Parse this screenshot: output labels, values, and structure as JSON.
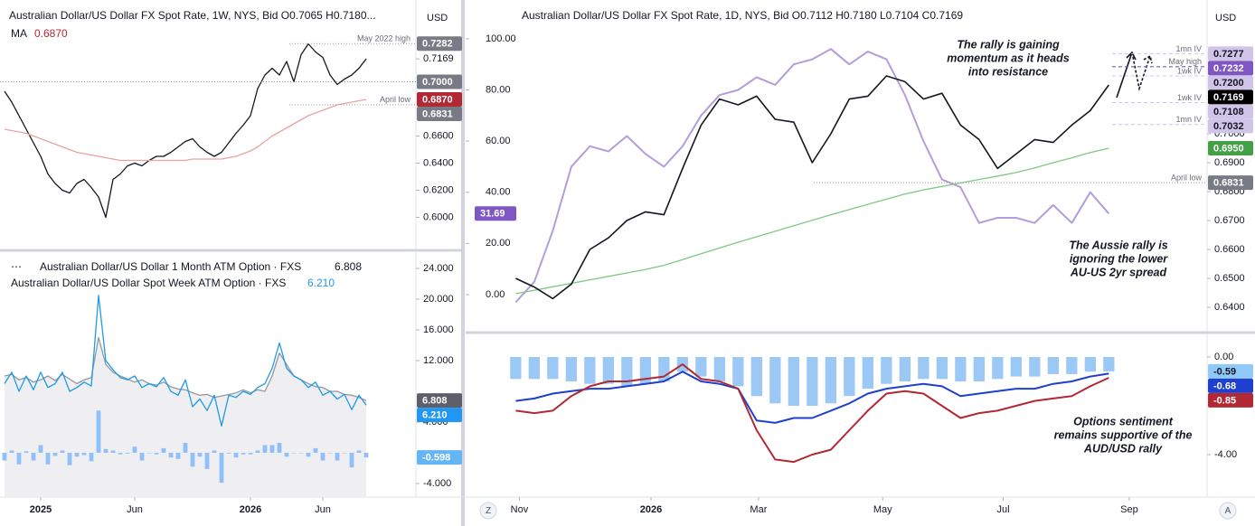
{
  "chart_data": [
    {
      "type": "line",
      "title": "Australian Dollar/US Dollar FX Spot Rate, 1W, NYS, Bid O0.7065 H0.7180...",
      "currency": "USD",
      "xlim": [
        -0.625,
        56.875
      ],
      "ylim": [
        0.577,
        0.757
      ],
      "yticks": [
        {
          "value": 0.6,
          "label": "0.6000"
        },
        {
          "value": 0.62,
          "label": "0.6200"
        },
        {
          "value": 0.64,
          "label": "0.6400"
        },
        {
          "value": 0.66,
          "label": "0.6600"
        }
      ],
      "x": [
        0,
        1,
        2,
        3,
        4,
        5,
        6,
        7,
        8,
        9,
        10,
        11,
        12,
        13,
        14,
        15,
        16,
        17,
        18,
        19,
        20,
        21,
        22,
        23,
        24,
        25,
        26,
        27,
        28,
        29,
        30,
        31,
        32,
        33,
        34,
        35,
        36,
        37,
        38,
        39,
        40,
        41,
        42,
        43,
        44,
        45,
        46,
        47,
        48,
        49,
        50
      ],
      "series": [
        {
          "color": "#131722",
          "values": [
            0.693,
            0.685,
            0.675,
            0.665,
            0.655,
            0.645,
            0.632,
            0.625,
            0.62,
            0.618,
            0.625,
            0.628,
            0.622,
            0.615,
            0.6,
            0.628,
            0.632,
            0.638,
            0.64,
            0.638,
            0.642,
            0.645,
            0.645,
            0.648,
            0.652,
            0.656,
            0.658,
            0.652,
            0.648,
            0.645,
            0.648,
            0.655,
            0.662,
            0.668,
            0.675,
            0.695,
            0.705,
            0.71,
            0.705,
            0.715,
            0.7,
            0.72,
            0.728,
            0.722,
            0.718,
            0.705,
            0.698,
            0.702,
            0.705,
            0.71,
            0.7169
          ]
        },
        {
          "name": "MA",
          "color": "#e8a3a3",
          "values": [
            0.665,
            0.664,
            0.663,
            0.662,
            0.66,
            0.658,
            0.656,
            0.654,
            0.652,
            0.65,
            0.648,
            0.647,
            0.646,
            0.645,
            0.644,
            0.643,
            0.642,
            0.642,
            0.642,
            0.642,
            0.642,
            0.642,
            0.642,
            0.642,
            0.642,
            0.642,
            0.643,
            0.643,
            0.643,
            0.643,
            0.643,
            0.644,
            0.645,
            0.647,
            0.649,
            0.652,
            0.656,
            0.66,
            0.663,
            0.666,
            0.669,
            0.672,
            0.675,
            0.677,
            0.679,
            0.681,
            0.683,
            0.684,
            0.685,
            0.686,
            0.687
          ]
        }
      ],
      "price_labels": [
        {
          "value": 0.7282,
          "label": "0.7282",
          "color": "#787b86",
          "annotation": "May 2022 high",
          "line": true
        },
        {
          "value": 0.7169,
          "label": "0.7169"
        },
        {
          "value": 0.7,
          "label": "0.7000",
          "color": "#787b86",
          "line": true
        },
        {
          "value": 0.687,
          "label": "0.6870",
          "color": "#b22833"
        },
        {
          "value": 0.6831,
          "label": "0.6831",
          "color": "#787b86",
          "annotation": "April low",
          "line": true
        }
      ]
    },
    {
      "type": "line",
      "xlim": [
        -0.625,
        56.875
      ],
      "ylim": [
        -5.76,
        26
      ],
      "yticks": [
        {
          "value": 24,
          "label": "24.000"
        },
        {
          "value": 20,
          "label": "20.000"
        },
        {
          "value": 16,
          "label": "16.000"
        },
        {
          "value": 12,
          "label": "12.000"
        },
        {
          "value": 4,
          "label": "4.000"
        },
        {
          "value": -4,
          "label": "-4.000"
        }
      ],
      "xticks": [
        {
          "value": 5,
          "label": "2025"
        },
        {
          "value": 18,
          "label": "Jun"
        },
        {
          "value": 34,
          "label": "2026"
        },
        {
          "value": 44,
          "label": "Jun"
        }
      ],
      "x": [
        0,
        1,
        2,
        3,
        4,
        5,
        6,
        7,
        8,
        9,
        10,
        11,
        12,
        13,
        14,
        15,
        16,
        17,
        18,
        19,
        20,
        21,
        22,
        23,
        24,
        25,
        26,
        27,
        28,
        29,
        30,
        31,
        32,
        33,
        34,
        35,
        36,
        37,
        38,
        39,
        40,
        41,
        42,
        43,
        44,
        45,
        46,
        47,
        48,
        49,
        50
      ],
      "series": [
        {
          "name": "Australian Dollar/US Dollar 1 Month ATM Option · FXS",
          "color": "#9598a1",
          "fill": "#efeff2",
          "values": [
            10,
            10.2,
            9.5,
            9.8,
            9.2,
            9.5,
            10,
            9.4,
            10.2,
            9.6,
            9,
            9.5,
            9.8,
            15,
            11.5,
            10.5,
            10,
            9.6,
            9.2,
            9.5,
            9,
            8.8,
            9.2,
            8.6,
            8.3,
            8.2,
            7.8,
            7.5,
            7.6,
            7.2,
            7.4,
            7.6,
            7.8,
            8.2,
            7.8,
            8.2,
            8,
            10,
            13,
            11.5,
            10,
            9.5,
            9,
            8.6,
            8.5,
            8,
            8,
            7.6,
            7.5,
            7.2,
            6.808
          ]
        },
        {
          "name": "Australian Dollar/US Dollar Spot Week ATM Option · FXS",
          "color": "#1e9be8",
          "values": [
            9,
            10.5,
            8,
            10,
            8.2,
            10.5,
            8.5,
            9,
            10.5,
            8,
            8.5,
            9.2,
            8.7,
            20.5,
            12,
            10.8,
            9.8,
            9.5,
            10,
            8.5,
            9,
            8.6,
            9.8,
            8,
            7.5,
            9.5,
            6,
            7,
            5.5,
            7.5,
            3.5,
            7.5,
            7.2,
            8,
            7.6,
            8.5,
            9,
            11,
            14.3,
            11,
            10,
            9.5,
            8.5,
            9.2,
            7.5,
            8,
            7,
            7.6,
            5.6,
            7.5,
            6.21
          ]
        },
        {
          "style": "bar",
          "color": "#90bff9",
          "values": [
            -1,
            0.3,
            -1.5,
            0.2,
            -1,
            1,
            -1.5,
            -0.4,
            0.3,
            -1.6,
            -0.5,
            -0.3,
            -1.1,
            5.5,
            0.5,
            0.3,
            -0.2,
            -0.1,
            0.8,
            -1,
            0,
            -0.2,
            0.6,
            -0.6,
            -0.8,
            1.3,
            -1.8,
            -0.5,
            -2.1,
            0.3,
            -3.9,
            -0.1,
            -0.6,
            -0.2,
            -0.2,
            0.3,
            1,
            1,
            1.3,
            -0.5,
            0,
            0,
            -0.5,
            0.6,
            -1,
            0,
            -1,
            0,
            -1.9,
            0.3,
            -0.598
          ]
        }
      ],
      "price_labels": [
        {
          "value": 6.808,
          "label": "6.808",
          "color": "#5d606b"
        },
        {
          "value": 6.21,
          "label": "6.210",
          "color": "#2196f3"
        },
        {
          "value": -0.598,
          "label": "-0.598",
          "color": "#64b5f6"
        }
      ]
    },
    {
      "type": "line",
      "title": "Australian Dollar/US Dollar FX Spot Rate, 1D, NYS, Bid O0.7112 H0.7180 L0.7104 C0.7169",
      "currency": "USD",
      "xlim": [
        -2.7,
        37.3
      ],
      "ylim": [
        0.6322,
        0.7447
      ],
      "y2lim": [
        -13.8,
        113.4
      ],
      "yticks": [
        {
          "value": 0.64,
          "label": "0.6400"
        },
        {
          "value": 0.65,
          "label": "0.6500"
        },
        {
          "value": 0.66,
          "label": "0.6600"
        },
        {
          "value": 0.67,
          "label": "0.6700"
        },
        {
          "value": 0.68,
          "label": "0.6800"
        },
        {
          "value": 0.69,
          "label": "0.6900"
        },
        {
          "value": 0.7,
          "label": "0.7000"
        }
      ],
      "y2ticks": [
        {
          "value": 0,
          "label": "0.00"
        },
        {
          "value": 20,
          "label": "20.00"
        },
        {
          "value": 40,
          "label": "40.00"
        },
        {
          "value": 60,
          "label": "60.00"
        },
        {
          "value": 80,
          "label": "80.00"
        },
        {
          "value": 100,
          "label": "100.00"
        }
      ],
      "x": [
        0,
        1,
        2,
        3,
        4,
        5,
        6,
        7,
        8,
        9,
        10,
        11,
        12,
        13,
        14,
        15,
        16,
        17,
        18,
        19,
        20,
        21,
        22,
        23,
        24,
        25,
        26,
        27,
        28,
        29,
        30,
        31,
        32
      ],
      "series": [
        {
          "color": "#b39ddb",
          "axis": "y2",
          "width": 2,
          "values": [
            -3,
            5,
            25,
            50,
            58,
            56,
            62,
            55,
            50,
            58,
            70,
            78,
            80,
            85,
            82,
            90,
            92,
            96,
            90,
            95,
            92,
            78,
            60,
            45,
            42,
            28,
            30,
            30,
            28,
            35,
            28,
            40,
            31.69
          ]
        },
        {
          "color": "#81c784",
          "values": [
            0.6447,
            0.6459,
            0.6471,
            0.6483,
            0.6495,
            0.6507,
            0.6519,
            0.6531,
            0.6545,
            0.6565,
            0.6585,
            0.6605,
            0.6625,
            0.6644,
            0.6663,
            0.6682,
            0.6701,
            0.672,
            0.6738,
            0.6756,
            0.6774,
            0.6792,
            0.6806,
            0.6818,
            0.683,
            0.6842,
            0.6854,
            0.6866,
            0.6882,
            0.69,
            0.6917,
            0.6935,
            0.695
          ]
        },
        {
          "color": "#131722",
          "width": 1.6,
          "values": [
            0.65,
            0.647,
            0.643,
            0.648,
            0.66,
            0.664,
            0.67,
            0.673,
            0.672,
            0.688,
            0.703,
            0.712,
            0.71,
            0.713,
            0.705,
            0.704,
            0.69,
            0.7,
            0.712,
            0.713,
            0.72,
            0.718,
            0.712,
            0.714,
            0.703,
            0.698,
            0.688,
            0.693,
            0.698,
            0.697,
            0.703,
            0.708,
            0.7169
          ]
        }
      ],
      "price_labels": [
        {
          "value": 0.7277,
          "label": "0.7277",
          "color": "#d1c4e9",
          "text_color": "#131722",
          "annotation": "1mn IV",
          "line": true
        },
        {
          "value": 0.7232,
          "label": "0.7232",
          "color": "#7e57c2",
          "annotation": "May high",
          "line": true
        },
        {
          "value": 0.72,
          "label": "0.7200",
          "color": "#d1c4e9",
          "text_color": "#131722",
          "annotation": "1wk IV",
          "line": true
        },
        {
          "value": 0.7169,
          "label": "0.7169",
          "color": "#000000"
        },
        {
          "value": 0.7108,
          "label": "0.7108",
          "color": "#d1c4e9",
          "text_color": "#131722",
          "annotation": "1wk IV",
          "line": true
        },
        {
          "value": 0.7032,
          "label": "0.7032",
          "color": "#d1c4e9",
          "text_color": "#131722",
          "annotation": "1mn IV",
          "line": true
        },
        {
          "value": 0.695,
          "label": "0.6950",
          "color": "#43a047"
        },
        {
          "value": 0.6831,
          "label": "0.6831",
          "color": "#787b86",
          "annotation": "April low",
          "line": true
        },
        {
          "value": 31.69,
          "label": "31.69",
          "color": "#7e57c2",
          "axis": "y2"
        }
      ],
      "notes": [
        {
          "lines": [
            "The rally is gaining",
            "momentum as it heads",
            "into resistance"
          ]
        },
        {
          "lines": [
            "The Aussie rally is",
            "ignoring the lower",
            "AU-US 2yr spread"
          ]
        }
      ]
    },
    {
      "type": "line",
      "xlim": [
        -2.7,
        37.3
      ],
      "ylim": [
        -5.74,
        0.926
      ],
      "yticks": [
        {
          "value": 0,
          "label": "0.00"
        },
        {
          "value": -4,
          "label": "-4.00"
        }
      ],
      "xticks": [
        {
          "value": 0.2,
          "label": "Nov"
        },
        {
          "value": 7.3,
          "label": "2026"
        },
        {
          "value": 13.1,
          "label": "Mar"
        },
        {
          "value": 19.8,
          "label": "May"
        },
        {
          "value": 26.3,
          "label": "Jul"
        },
        {
          "value": 33.1,
          "label": "Sep"
        }
      ],
      "x": [
        0,
        1,
        2,
        3,
        4,
        5,
        6,
        7,
        8,
        9,
        10,
        11,
        12,
        13,
        14,
        15,
        16,
        17,
        18,
        19,
        20,
        21,
        22,
        23,
        24,
        25,
        26,
        27,
        28,
        29,
        30,
        31,
        32
      ],
      "series": [
        {
          "style": "bar",
          "color": "#9cc8f5",
          "values": [
            -0.9,
            -0.9,
            -0.9,
            -1,
            -1.1,
            -1.1,
            -1.2,
            -1.1,
            -1,
            -0.6,
            -0.8,
            -1,
            -1.2,
            -1.6,
            -1.9,
            -2,
            -2,
            -1.9,
            -1.6,
            -1.3,
            -1.1,
            -1,
            -0.9,
            -0.9,
            -1,
            -1,
            -0.9,
            -0.8,
            -0.8,
            -0.7,
            -0.7,
            -0.6,
            -0.59
          ]
        },
        {
          "color": "#1e3fd0",
          "width": 2,
          "values": [
            -1.8,
            -1.7,
            -1.5,
            -1.4,
            -1.3,
            -1.3,
            -1.2,
            -1.1,
            -1,
            -0.6,
            -1,
            -1.1,
            -1.3,
            -2.6,
            -2.7,
            -2.5,
            -2.5,
            -2.2,
            -1.9,
            -1.5,
            -1.3,
            -1.2,
            -1.1,
            -1.2,
            -1.6,
            -1.5,
            -1.4,
            -1.3,
            -1.3,
            -1.1,
            -1,
            -0.8,
            -0.68
          ]
        },
        {
          "color": "#b22833",
          "width": 2,
          "values": [
            -2.2,
            -2.3,
            -2.2,
            -1.6,
            -1.2,
            -1,
            -1,
            -0.9,
            -0.8,
            -0.3,
            -0.9,
            -1,
            -1.3,
            -3,
            -4.2,
            -4.3,
            -4,
            -3.8,
            -3,
            -2.2,
            -1.5,
            -1.4,
            -1.5,
            -2,
            -2.5,
            -2.3,
            -2.2,
            -2,
            -1.8,
            -1.7,
            -1.6,
            -1.2,
            -0.85
          ]
        }
      ],
      "price_labels": [
        {
          "value": -0.59,
          "label": "-0.59",
          "color": "#90caf9",
          "text_color": "#131722"
        },
        {
          "value": -0.68,
          "label": "-0.68",
          "color": "#1e3fd0"
        },
        {
          "value": -0.85,
          "label": "-0.85",
          "color": "#b22833"
        }
      ],
      "notes": [
        {
          "lines": [
            "Options sentiment",
            "remains supportive of the",
            "AUD/USD rally"
          ]
        }
      ],
      "buttons": [
        "Z",
        "A"
      ]
    }
  ]
}
